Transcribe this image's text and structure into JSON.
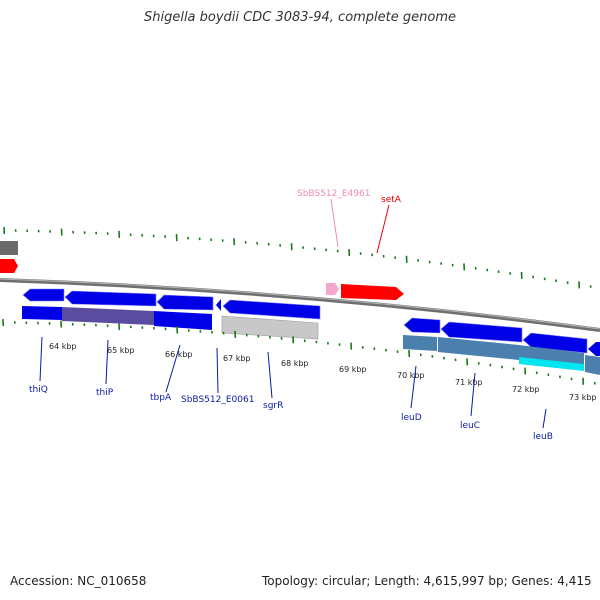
{
  "title": "Shigella boydii CDC 3083-94, complete genome",
  "accession": "Accession: NC_010658",
  "topology": "Topology: circular; Length: 4,615,997 bp; Genes: 4,415",
  "ruler_labels": [
    "64 kbp",
    "65 kbp",
    "66 kbp",
    "67 kbp",
    "68 kbp",
    "69 kbp",
    "70 kbp",
    "71 kbp",
    "72 kbp",
    "73 kbp"
  ],
  "genes_top": [
    {
      "label": "SbBS512_E4961",
      "color": "#f08cb6"
    },
    {
      "label": "setA",
      "color": "#e80000"
    }
  ],
  "genes_bottom": [
    {
      "label": "thiQ"
    },
    {
      "label": "thiP"
    },
    {
      "label": "tbpA"
    },
    {
      "label": "SbBS512_E0061"
    },
    {
      "label": "sgrR"
    },
    {
      "label": "leuD"
    },
    {
      "label": "leuC"
    },
    {
      "label": "leuB"
    }
  ],
  "colors": {
    "gene_blue": "#0000e6",
    "label_blue": "#0a1aa8",
    "tick_green": "#1a7a1a",
    "backbone": "#7f7f7f",
    "feature_red": "#ff0000",
    "feature_pink": "#f4a6cc",
    "pseudo_grey": "#c8c8c8",
    "steel_blue": "#4a7fae",
    "cyan": "#00e5f0",
    "overlap_purple": "#5a4da0"
  }
}
